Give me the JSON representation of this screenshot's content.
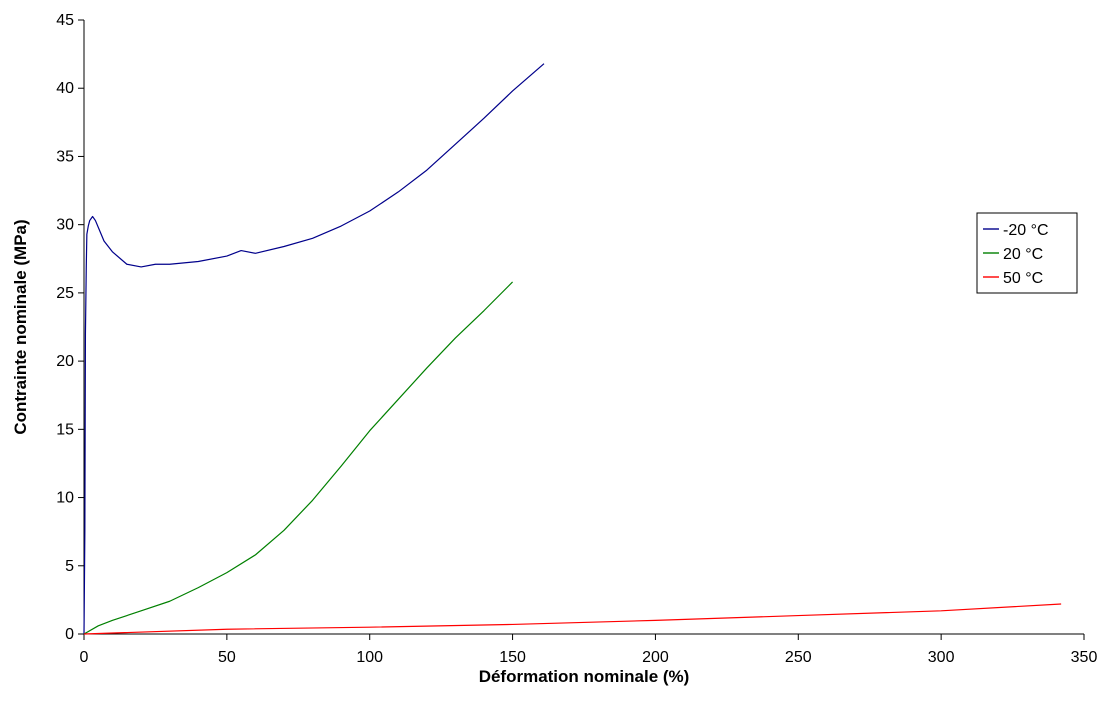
{
  "chart_data": {
    "type": "line",
    "title": "",
    "xlabel": "Déformation nominale (%)",
    "ylabel": "Contrainte nominale (MPa)",
    "xlim": [
      0,
      350
    ],
    "ylim": [
      0,
      45
    ],
    "xticks": [
      0,
      50,
      100,
      150,
      200,
      250,
      300,
      350
    ],
    "yticks": [
      0,
      5,
      10,
      15,
      20,
      25,
      30,
      35,
      40,
      45
    ],
    "grid": false,
    "legend_position": "right",
    "series": [
      {
        "name": "-20 °C",
        "color": "#00008B",
        "x": [
          0,
          0.3,
          0.5,
          0.8,
          1.0,
          1.5,
          2.0,
          3.0,
          4.0,
          5.0,
          7.0,
          10.0,
          15.0,
          20.0,
          25.0,
          30.0,
          40.0,
          50.0,
          55.0,
          60.0,
          70.0,
          80.0,
          90.0,
          100.0,
          110.0,
          120.0,
          130.0,
          140.0,
          150.0,
          161.0
        ],
        "y": [
          0,
          7.5,
          22.0,
          27.0,
          29.3,
          29.9,
          30.3,
          30.6,
          30.3,
          29.8,
          28.8,
          28.0,
          27.1,
          26.9,
          27.1,
          27.1,
          27.3,
          27.7,
          28.1,
          27.9,
          28.4,
          29.0,
          29.9,
          31.0,
          32.4,
          34.0,
          35.9,
          37.8,
          39.8,
          41.8
        ]
      },
      {
        "name": "20 °C",
        "color": "#008000",
        "x": [
          0,
          5,
          10,
          20,
          30,
          40,
          50,
          60,
          70,
          80,
          90,
          100,
          110,
          120,
          130,
          140,
          150
        ],
        "y": [
          0,
          0.6,
          1.0,
          1.7,
          2.4,
          3.4,
          4.5,
          5.8,
          7.6,
          9.8,
          12.3,
          14.9,
          17.2,
          19.5,
          21.7,
          23.7,
          25.8
        ]
      },
      {
        "name": "50 °C",
        "color": "#FF0000",
        "x": [
          0,
          50,
          100,
          150,
          200,
          250,
          300,
          342
        ],
        "y": [
          0,
          0.35,
          0.5,
          0.7,
          1.0,
          1.35,
          1.7,
          2.2
        ]
      }
    ]
  }
}
